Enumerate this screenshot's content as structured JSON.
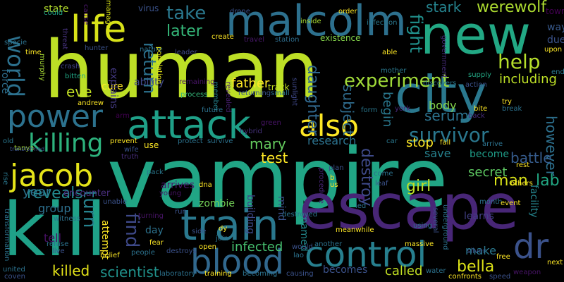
{
  "words": [
    {
      "text": "vampire",
      "color": "#21a585",
      "vertical": false
    },
    {
      "text": "human",
      "color": "#bddf26",
      "vertical": false
    },
    {
      "text": "escape",
      "color": "#482677",
      "vertical": false
    },
    {
      "text": "kill",
      "color": "#1fa188",
      "vertical": false
    },
    {
      "text": "new",
      "color": "#22a884",
      "vertical": false
    },
    {
      "text": "city",
      "color": "#2a788e",
      "vertical": false
    },
    {
      "text": "malcolm",
      "color": "#2d708e",
      "vertical": false
    },
    {
      "text": "train",
      "color": "#2a788e",
      "vertical": false
    },
    {
      "text": "attack",
      "color": "#1fa088",
      "vertical": false
    },
    {
      "text": "blood",
      "color": "#31688e",
      "vertical": false
    },
    {
      "text": "control",
      "color": "#277f8e",
      "vertical": false
    },
    {
      "text": "life",
      "color": "#d8e219",
      "vertical": false
    },
    {
      "text": "power",
      "color": "#2c728e",
      "vertical": false
    },
    {
      "text": "jacob",
      "color": "#e5e419",
      "vertical": false
    },
    {
      "text": "also",
      "color": "#fde725",
      "vertical": false
    },
    {
      "text": "killing",
      "color": "#2db27d",
      "vertical": false
    },
    {
      "text": "survivor",
      "color": "#2a778e",
      "vertical": false
    },
    {
      "text": "experiment",
      "color": "#a0da39",
      "vertical": false
    },
    {
      "text": "dr",
      "color": "#3b528b",
      "vertical": false
    },
    {
      "text": "world",
      "color": "#2c718e",
      "vertical": true
    },
    {
      "text": "werewolf",
      "color": "#addc30",
      "vertical": false
    },
    {
      "text": "help",
      "color": "#b5de2b",
      "vertical": false
    },
    {
      "text": "take",
      "color": "#2a788e",
      "vertical": false
    },
    {
      "text": "later",
      "color": "#35b779",
      "vertical": false
    },
    {
      "text": "return",
      "color": "#2c728e",
      "vertical": true
    },
    {
      "text": "fight",
      "color": "#21918c",
      "vertical": true
    },
    {
      "text": "stark",
      "color": "#25838e",
      "vertical": false
    },
    {
      "text": "turn",
      "color": "#26828e",
      "vertical": true
    },
    {
      "text": "find",
      "color": "#3e4989",
      "vertical": true
    },
    {
      "text": "reveals",
      "color": "#23898e",
      "vertical": false
    },
    {
      "text": "serum",
      "color": "#2c728e",
      "vertical": false
    },
    {
      "text": "eve",
      "color": "#c2df23",
      "vertical": false
    },
    {
      "text": "mary",
      "color": "#65cb5e",
      "vertical": false
    },
    {
      "text": "daughter",
      "color": "#31688e",
      "vertical": true
    },
    {
      "text": "subject",
      "color": "#2f6c8e",
      "vertical": true
    },
    {
      "text": "father",
      "color": "#fde725",
      "vertical": false
    },
    {
      "text": "test",
      "color": "#fde725",
      "vertical": false
    },
    {
      "text": "bella",
      "color": "#dde318",
      "vertical": false
    },
    {
      "text": "scientist",
      "color": "#20928c",
      "vertical": false
    },
    {
      "text": "infected",
      "color": "#46c06f",
      "vertical": false
    },
    {
      "text": "begin",
      "color": "#2a788e",
      "vertical": true
    },
    {
      "text": "destroy",
      "color": "#3e4a89",
      "vertical": true
    },
    {
      "text": "man",
      "color": "#d8e219",
      "vertical": false
    },
    {
      "text": "girl",
      "color": "#bddf26",
      "vertical": false
    },
    {
      "text": "lab",
      "color": "#22a884",
      "vertical": false
    },
    {
      "text": "however",
      "color": "#2d708e",
      "vertical": true
    },
    {
      "text": "battle",
      "color": "#365c8d",
      "vertical": false
    },
    {
      "text": "including",
      "color": "#bddf26",
      "vertical": false
    },
    {
      "text": "research",
      "color": "#2c728e",
      "vertical": false
    },
    {
      "text": "stop",
      "color": "#fde725",
      "vertical": false
    },
    {
      "text": "save",
      "color": "#26828e",
      "vertical": false
    },
    {
      "text": "secret",
      "color": "#5ec962",
      "vertical": false
    },
    {
      "text": "become",
      "color": "#1f9e89",
      "vertical": false
    },
    {
      "text": "year",
      "color": "#2c718e",
      "vertical": false
    },
    {
      "text": "group",
      "color": "#2d708e",
      "vertical": false
    },
    {
      "text": "encounter",
      "color": "#472d7b",
      "vertical": false
    },
    {
      "text": "arrives",
      "color": "#481a6c",
      "vertical": false
    },
    {
      "text": "zombie",
      "color": "#73d056",
      "vertical": false
    },
    {
      "text": "killed",
      "color": "#e5e419",
      "vertical": false
    },
    {
      "text": "becomes",
      "color": "#3b528b",
      "vertical": false
    },
    {
      "text": "called",
      "color": "#c2df23",
      "vertical": false
    },
    {
      "text": "cure",
      "color": "#fde725",
      "vertical": false
    },
    {
      "text": "ability",
      "color": "#3f4889",
      "vertical": false
    },
    {
      "text": "explains",
      "color": "#443983",
      "vertical": true
    },
    {
      "text": "force",
      "color": "#2e6f8e",
      "vertical": true
    },
    {
      "text": "body",
      "color": "#84d44b",
      "vertical": false
    },
    {
      "text": "make",
      "color": "#2a788e",
      "vertical": false
    },
    {
      "text": "tell",
      "color": "#471063",
      "vertical": false
    },
    {
      "text": "attempt",
      "color": "#fde725",
      "vertical": true
    },
    {
      "text": "day",
      "color": "#2c728e",
      "vertical": false
    },
    {
      "text": "mind",
      "color": "#3b528b",
      "vertical": true
    },
    {
      "text": "named",
      "color": "#23898e",
      "vertical": true
    },
    {
      "text": "building",
      "color": "#3e4989",
      "vertical": true
    },
    {
      "text": "facility",
      "color": "#25858e",
      "vertical": true
    },
    {
      "text": "learns",
      "color": "#423f85",
      "vertical": false
    },
    {
      "text": "state",
      "color": "#b5de2b",
      "vertical": false
    },
    {
      "text": "cause",
      "color": "#481769",
      "vertical": true
    },
    {
      "text": "virus",
      "color": "#3b528b",
      "vertical": false
    },
    {
      "text": "drone",
      "color": "#3b528b",
      "vertical": false
    },
    {
      "text": "order",
      "color": "#fde725",
      "vertical": false
    },
    {
      "text": "inside",
      "color": "#a8db34",
      "vertical": false
    },
    {
      "text": "infection",
      "color": "#2a788e",
      "vertical": false
    },
    {
      "text": "way",
      "color": "#38598c",
      "vertical": false
    },
    {
      "text": "town",
      "color": "#440154",
      "vertical": false
    },
    {
      "text": "could",
      "color": "#20a386",
      "vertical": false
    },
    {
      "text": "manages",
      "color": "#d8e219",
      "vertical": true
    },
    {
      "text": "hunter",
      "color": "#3b528b",
      "vertical": false
    },
    {
      "text": "nature",
      "color": "#2c728e",
      "vertical": false
    },
    {
      "text": "population",
      "color": "#e5e419",
      "vertical": true
    },
    {
      "text": "leader",
      "color": "#3f4889",
      "vertical": false
    },
    {
      "text": "create",
      "color": "#fde725",
      "vertical": false
    },
    {
      "text": "travel",
      "color": "#48186a",
      "vertical": false
    },
    {
      "text": "station",
      "color": "#2e6e8e",
      "vertical": false
    },
    {
      "text": "existence",
      "color": "#84d44b",
      "vertical": false
    },
    {
      "text": "able",
      "color": "#fde725",
      "vertical": false
    },
    {
      "text": "government",
      "color": "#472c7a",
      "vertical": true
    },
    {
      "text": "due",
      "color": "#3b528b",
      "vertical": false
    },
    {
      "text": "upon",
      "color": "#fde725",
      "vertical": false
    },
    {
      "text": "end",
      "color": "#2a788e",
      "vertical": false
    },
    {
      "text": "time",
      "color": "#fde725",
      "vertical": false
    },
    {
      "text": "crash",
      "color": "#414287",
      "vertical": false
    },
    {
      "text": "bitten",
      "color": "#22a884",
      "vertical": false
    },
    {
      "text": "murphy",
      "color": "#a8db34",
      "vertical": true
    },
    {
      "text": "threat",
      "color": "#46327e",
      "vertical": true
    },
    {
      "text": "specie",
      "color": "#2c728e",
      "vertical": false
    },
    {
      "text": "remaining",
      "color": "#481467",
      "vertical": false
    },
    {
      "text": "process",
      "color": "#35b779",
      "vertical": false
    },
    {
      "text": "member",
      "color": "#25838e",
      "vertical": true
    },
    {
      "text": "track",
      "color": "#c2df23",
      "vertical": false
    },
    {
      "text": "small",
      "color": "#2c728e",
      "vertical": false
    },
    {
      "text": "revealed",
      "color": "#481f70",
      "vertical": true
    },
    {
      "text": "returning",
      "color": "#39568c",
      "vertical": false
    },
    {
      "text": "sunlight",
      "color": "#3f4889",
      "vertical": true
    },
    {
      "text": "mother",
      "color": "#2a788e",
      "vertical": false
    },
    {
      "text": "discovers",
      "color": "#2a788e",
      "vertical": false
    },
    {
      "text": "action",
      "color": "#3b528b",
      "vertical": false
    },
    {
      "text": "supply",
      "color": "#22a884",
      "vertical": false
    },
    {
      "text": "andrew",
      "color": "#fde725",
      "vertical": false
    },
    {
      "text": "arm",
      "color": "#440154",
      "vertical": false
    },
    {
      "text": "future",
      "color": "#2c728e",
      "vertical": false
    },
    {
      "text": "green",
      "color": "#481467",
      "vertical": false
    },
    {
      "text": "york",
      "color": "#482878",
      "vertical": false
    },
    {
      "text": "form",
      "color": "#2a788e",
      "vertical": false
    },
    {
      "text": "bite",
      "color": "#fde725",
      "vertical": false
    },
    {
      "text": "try",
      "color": "#fde725",
      "vertical": false
    },
    {
      "text": "back",
      "color": "#472d7b",
      "vertical": false
    },
    {
      "text": "break",
      "color": "#2c728e",
      "vertical": false
    },
    {
      "text": "old",
      "color": "#2a788e",
      "vertical": false
    },
    {
      "text": "prevent",
      "color": "#fde725",
      "vertical": false
    },
    {
      "text": "protect",
      "color": "#2c728e",
      "vertical": false
    },
    {
      "text": "survive",
      "color": "#2c728e",
      "vertical": false
    },
    {
      "text": "hybrid",
      "color": "#46327e",
      "vertical": false
    },
    {
      "text": "car",
      "color": "#2a788e",
      "vertical": false
    },
    {
      "text": "fall",
      "color": "#fde725",
      "vertical": false
    },
    {
      "text": "arrive",
      "color": "#2c728e",
      "vertical": false
    },
    {
      "text": "tanya",
      "color": "#a8db34",
      "vertical": false
    },
    {
      "text": "wife",
      "color": "#3b528b",
      "vertical": false
    },
    {
      "text": "truth",
      "color": "#472d7b",
      "vertical": false
    },
    {
      "text": "use",
      "color": "#fde725",
      "vertical": false
    },
    {
      "text": "rest",
      "color": "#fde725",
      "vertical": false
    },
    {
      "text": "transformed",
      "color": "#3b528b",
      "vertical": false
    },
    {
      "text": "pack",
      "color": "#2a788e",
      "vertical": false
    },
    {
      "text": "dna",
      "color": "#fde725",
      "vertical": false
    },
    {
      "text": "plan",
      "color": "#3b528b",
      "vertical": false
    },
    {
      "text": "b",
      "color": "#fde725",
      "vertical": false
    },
    {
      "text": "us",
      "color": "#fde725",
      "vertical": false
    },
    {
      "text": "come",
      "color": "#2c728e",
      "vertical": false
    },
    {
      "text": "leaf",
      "color": "#3b528b",
      "vertical": false
    },
    {
      "text": "others",
      "color": "#fde725",
      "vertical": false
    },
    {
      "text": "young",
      "color": "#481467",
      "vertical": false
    },
    {
      "text": "rise",
      "color": "#2a788e",
      "vertical": true
    },
    {
      "text": "unable",
      "color": "#3b528b",
      "vertical": false
    },
    {
      "text": "destroyed",
      "color": "#2c728e",
      "vertical": false
    },
    {
      "text": "led",
      "color": "#2c728e",
      "vertical": false
    },
    {
      "text": "month",
      "color": "#2c728e",
      "vertical": false
    },
    {
      "text": "event",
      "color": "#fde725",
      "vertical": false
    },
    {
      "text": "witness",
      "color": "#2c728e",
      "vertical": false
    },
    {
      "text": "run",
      "color": "#3b528b",
      "vertical": false
    },
    {
      "text": "turning",
      "color": "#481467",
      "vertical": false
    },
    {
      "text": "dy",
      "color": "#fde725",
      "vertical": false
    },
    {
      "text": "join",
      "color": "#2c728e",
      "vertical": false
    },
    {
      "text": "side",
      "color": "#3b528b",
      "vertical": false
    },
    {
      "text": "procedure",
      "color": "#482677",
      "vertical": true
    },
    {
      "text": "using",
      "color": "#2c728e",
      "vertical": false
    },
    {
      "text": "several",
      "color": "#3b528b",
      "vertical": true
    },
    {
      "text": "underground",
      "color": "#2c728e",
      "vertical": true
    },
    {
      "text": "free",
      "color": "#fde725",
      "vertical": false
    },
    {
      "text": "next",
      "color": "#fde725",
      "vertical": false
    },
    {
      "text": "refuse",
      "color": "#2c728e",
      "vertical": false
    },
    {
      "text": "live",
      "color": "#3b528b",
      "vertical": false
    },
    {
      "text": "belief",
      "color": "#fde725",
      "vertical": false
    },
    {
      "text": "people",
      "color": "#2c728e",
      "vertical": false
    },
    {
      "text": "fear",
      "color": "#fde725",
      "vertical": false
    },
    {
      "text": "destroys",
      "color": "#3b528b",
      "vertical": false
    },
    {
      "text": "open",
      "color": "#fde725",
      "vertical": false
    },
    {
      "text": "meanwhile",
      "color": "#fde725",
      "vertical": false
    },
    {
      "text": "another",
      "color": "#2c728e",
      "vertical": false
    },
    {
      "text": "would",
      "color": "#3b528b",
      "vertical": false
    },
    {
      "text": "massive",
      "color": "#fde725",
      "vertical": false
    },
    {
      "text": "lao",
      "color": "#2c728e",
      "vertical": false
    },
    {
      "text": "silver",
      "color": "#3b528b",
      "vertical": false
    },
    {
      "text": "weapon",
      "color": "#481467",
      "vertical": false
    },
    {
      "text": "transformation",
      "color": "#2c728e",
      "vertical": true
    },
    {
      "text": "united",
      "color": "#2c728e",
      "vertical": false
    },
    {
      "text": "coven",
      "color": "#3b528b",
      "vertical": false
    },
    {
      "text": "laboratory",
      "color": "#2c728e",
      "vertical": false
    },
    {
      "text": "training",
      "color": "#fde725",
      "vertical": false
    },
    {
      "text": "becoming",
      "color": "#2c728e",
      "vertical": false
    },
    {
      "text": "causing",
      "color": "#3b528b",
      "vertical": false
    },
    {
      "text": "water",
      "color": "#2c728e",
      "vertical": false
    },
    {
      "text": "confronts",
      "color": "#fde725",
      "vertical": false
    },
    {
      "text": "speed",
      "color": "#3b528b",
      "vertical": false
    }
  ]
}
